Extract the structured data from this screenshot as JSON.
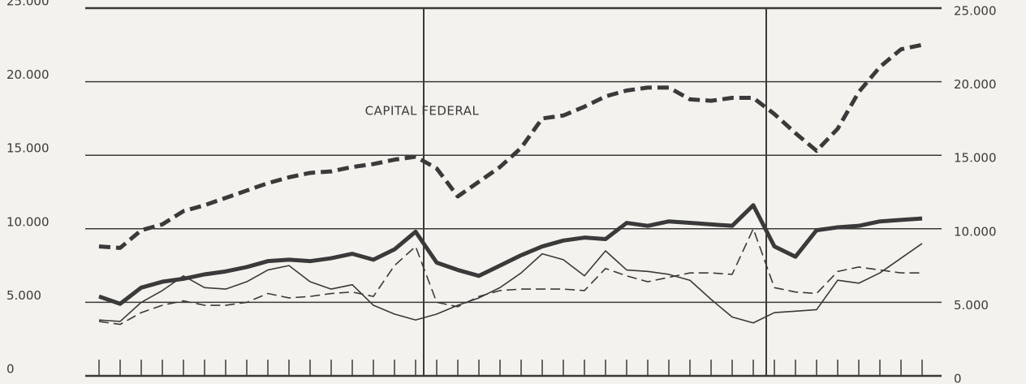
{
  "chart_data": {
    "type": "line",
    "annotations": [
      "CAPITAL FEDERAL"
    ],
    "categories": [
      null,
      null,
      null,
      null,
      null,
      null,
      null,
      null,
      null,
      null,
      null,
      null,
      null,
      null,
      null,
      null,
      null,
      null,
      null,
      null,
      null,
      null,
      null,
      null,
      null,
      null,
      null,
      null,
      null,
      null,
      null,
      null,
      null,
      null,
      null,
      null,
      null,
      null,
      null,
      null
    ],
    "ylim": [
      0,
      25000
    ],
    "yticks": [
      0,
      {
        "value": 5000,
        "label": "5.000"
      },
      {
        "value": 10000,
        "label": "10.000"
      },
      {
        "value": 15000,
        "label": "15.000"
      },
      {
        "value": 20000,
        "label": "20.000"
      },
      {
        "value": 25000,
        "label": "25.000"
      }
    ],
    "y2lim": [
      0,
      25000
    ],
    "y2ticks": [
      0,
      {
        "value": 5000,
        "label": "5.000"
      },
      {
        "value": 10000,
        "label": "10.000"
      },
      {
        "value": 15000,
        "label": "15.000"
      },
      {
        "value": 20000,
        "label": "20.000"
      },
      {
        "value": 25000,
        "label": "25.000"
      }
    ],
    "grid": true,
    "series": [
      {
        "color": "#3a3a3a",
        "dashed": true,
        "weight": "heavy",
        "values": [
          8800,
          8700,
          9900,
          10300,
          11200,
          11600,
          12100,
          12600,
          13100,
          13500,
          13800,
          13900,
          14200,
          14400,
          14700,
          14900,
          14100,
          12200,
          13200,
          14200,
          15500,
          17500,
          17700,
          18300,
          19000,
          19400,
          19600,
          19600,
          18800,
          18700,
          18900,
          18900,
          17800,
          16500,
          15300,
          16800,
          19300,
          21000,
          22200,
          22500
        ]
      },
      {
        "color": "#3a3a3a",
        "dashed": false,
        "weight": "heavy",
        "values": [
          5400,
          4900,
          6000,
          6400,
          6600,
          6900,
          7100,
          7400,
          7800,
          7900,
          7800,
          8000,
          8300,
          7900,
          8600,
          9800,
          7700,
          7200,
          6800,
          7500,
          8200,
          8800,
          9200,
          9400,
          9300,
          10400,
          10200,
          10500,
          10400,
          10300,
          10200,
          11600,
          8800,
          8100,
          9900,
          10100,
          10200,
          10500,
          10600,
          10700
        ]
      },
      {
        "color": "#3a3a3a",
        "dashed": false,
        "weight": "light",
        "values": [
          3800,
          3700,
          5000,
          5800,
          6800,
          6000,
          5900,
          6400,
          7200,
          7500,
          6400,
          5900,
          6200,
          4800,
          4200,
          3800,
          4200,
          4800,
          5300,
          6000,
          7000,
          8300,
          7900,
          6800,
          8500,
          7200,
          7100,
          6900,
          6500,
          5200,
          4000,
          3600,
          4300,
          4400,
          4500,
          6500,
          6300,
          7000,
          8000,
          9000
        ]
      },
      {
        "color": "#3a3a3a",
        "dashed": true,
        "weight": "light",
        "values": [
          3700,
          3500,
          4300,
          4800,
          5100,
          4800,
          4800,
          5000,
          5600,
          5300,
          5400,
          5600,
          5700,
          5400,
          7500,
          8800,
          5000,
          4700,
          5400,
          5800,
          5900,
          5900,
          5900,
          5800,
          7300,
          6800,
          6400,
          6700,
          7000,
          7000,
          6900,
          10000,
          6000,
          5700,
          5600,
          7100,
          7400,
          7200,
          7000,
          7000
        ]
      }
    ]
  }
}
